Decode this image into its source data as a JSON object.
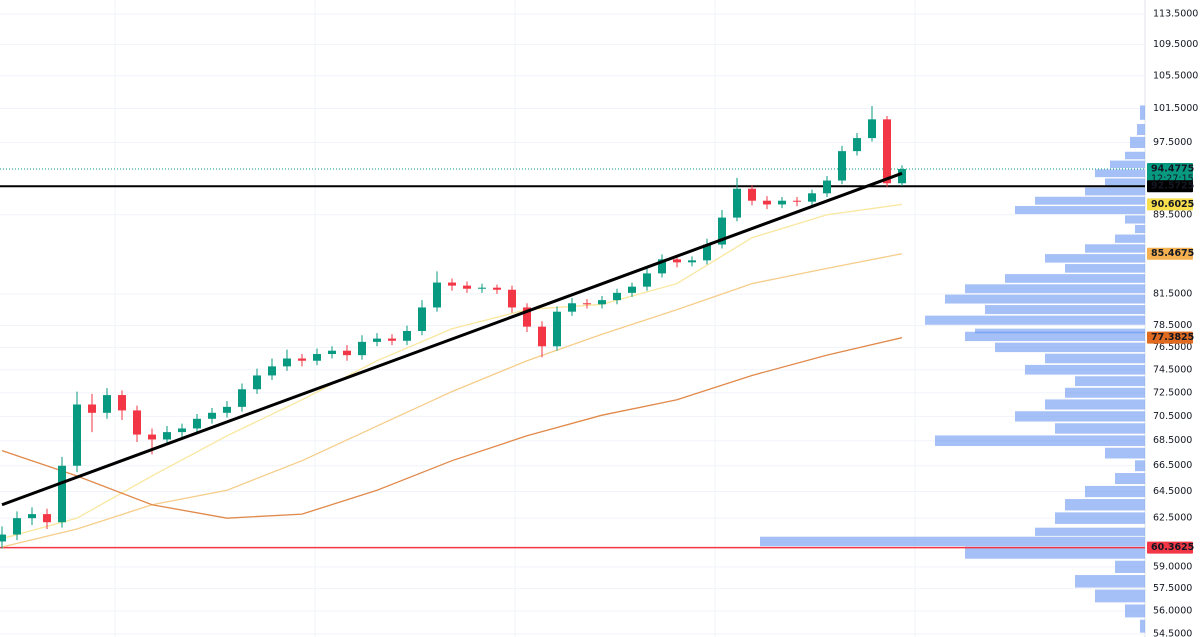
{
  "chart_data": {
    "type": "candlestick",
    "log_scale": true,
    "grid": true,
    "ylim": [
      54.3,
      115.4
    ],
    "yticks": [
      {
        "value": 113.5,
        "label": "113.5000"
      },
      {
        "value": 109.5,
        "label": "109.5000"
      },
      {
        "value": 105.5,
        "label": "105.5000"
      },
      {
        "value": 101.5,
        "label": "101.5000"
      },
      {
        "value": 97.5,
        "label": "97.5000"
      },
      {
        "value": 89.5,
        "label": "89.5000"
      },
      {
        "value": 81.5,
        "label": "81.5000"
      },
      {
        "value": 78.5,
        "label": "78.5000"
      },
      {
        "value": 76.5,
        "label": "76.5000"
      },
      {
        "value": 74.5,
        "label": "74.5000"
      },
      {
        "value": 72.5,
        "label": "72.5000"
      },
      {
        "value": 70.5,
        "label": "70.5000"
      },
      {
        "value": 68.5,
        "label": "68.5000"
      },
      {
        "value": 66.5,
        "label": "66.5000"
      },
      {
        "value": 64.5,
        "label": "64.5000"
      },
      {
        "value": 62.5,
        "label": "62.5000"
      },
      {
        "value": 59,
        "label": "59.0000"
      },
      {
        "value": 57.5,
        "label": "57.5000"
      },
      {
        "value": 56,
        "label": "56.0000"
      },
      {
        "value": 54.5,
        "label": "54.5000"
      }
    ],
    "up_color": "#089981",
    "down_color": "#f23645",
    "open": [
      60.8,
      61.3,
      62.5,
      62.8,
      62.2,
      66.5,
      71.5,
      70.8,
      72.3,
      71.0,
      69.0,
      68.6,
      69.2,
      69.5,
      70.3,
      70.8,
      71.3,
      72.8,
      74.0,
      74.8,
      75.5,
      75.3,
      75.9,
      76.2,
      75.8,
      77.0,
      77.3,
      77.1,
      78.0,
      80.2,
      82.6,
      82.3,
      82.0,
      82.1,
      81.9,
      80.2,
      78.4,
      76.6,
      79.8,
      80.6,
      80.5,
      80.9,
      81.6,
      82.2,
      83.5,
      84.9,
      84.6,
      84.8,
      86.4,
      89.2,
      92.3,
      91.0,
      90.6,
      91.0,
      90.9,
      91.8,
      93.2,
      96.5,
      98.0,
      100.2,
      92.9
    ],
    "high": [
      61.9,
      63.0,
      63.3,
      63.2,
      67.2,
      72.6,
      72.4,
      72.9,
      72.7,
      71.4,
      69.5,
      69.7,
      69.9,
      70.7,
      71.2,
      71.8,
      73.3,
      74.6,
      75.5,
      76.3,
      75.9,
      76.4,
      76.6,
      76.7,
      77.6,
      77.8,
      77.7,
      78.5,
      80.9,
      83.7,
      83.0,
      82.7,
      82.5,
      82.4,
      82.3,
      80.6,
      78.9,
      80.3,
      81.1,
      81.0,
      81.3,
      82.0,
      82.6,
      84.0,
      85.4,
      85.3,
      85.2,
      87.0,
      90.0,
      93.5,
      92.7,
      91.5,
      91.4,
      91.4,
      92.2,
      93.7,
      97.1,
      98.6,
      101.8,
      100.6,
      94.9
    ],
    "low": [
      60.3,
      60.9,
      62.0,
      61.7,
      61.8,
      66.0,
      69.2,
      70.3,
      70.2,
      68.4,
      67.4,
      68.2,
      68.8,
      69.1,
      69.9,
      70.4,
      70.9,
      72.4,
      73.6,
      74.4,
      74.8,
      74.9,
      75.5,
      75.3,
      75.4,
      76.6,
      76.7,
      76.7,
      77.6,
      79.8,
      81.8,
      81.6,
      81.6,
      81.5,
      79.7,
      77.9,
      75.6,
      76.2,
      79.4,
      80.1,
      80.1,
      80.5,
      81.2,
      81.8,
      83.1,
      84.1,
      84.2,
      84.4,
      86.0,
      88.8,
      90.5,
      90.1,
      90.2,
      90.4,
      90.5,
      91.4,
      92.8,
      96.0,
      97.6,
      92.5,
      92.6
    ],
    "close": [
      61.3,
      62.5,
      62.8,
      62.2,
      66.5,
      71.5,
      70.8,
      72.3,
      71.0,
      69.0,
      68.6,
      69.2,
      69.5,
      70.3,
      70.8,
      71.3,
      72.8,
      74.0,
      74.8,
      75.5,
      75.3,
      75.9,
      76.2,
      75.8,
      77.0,
      77.3,
      77.1,
      78.0,
      80.2,
      82.6,
      82.3,
      82.0,
      82.1,
      81.9,
      80.2,
      78.4,
      76.6,
      79.8,
      80.6,
      80.5,
      80.9,
      81.6,
      82.2,
      83.5,
      84.9,
      84.6,
      84.8,
      86.4,
      89.2,
      92.3,
      91.0,
      90.6,
      91.0,
      90.9,
      91.8,
      93.2,
      96.5,
      98.0,
      100.2,
      92.9,
      94.4775
    ],
    "lines": [
      {
        "color": "#f9e79f",
        "x": [
          0,
          5,
          10,
          15,
          20,
          25,
          30,
          35,
          40,
          45,
          50,
          55,
          60
        ],
        "values": [
          61.0,
          62.5,
          65.7,
          68.9,
          71.9,
          75.3,
          78.2,
          80.0,
          80.5,
          82.5,
          87.1,
          89.5,
          90.6025
        ]
      },
      {
        "color": "#f6cd8a",
        "x": [
          0,
          5,
          10,
          15,
          20,
          25,
          30,
          35,
          40,
          45,
          50,
          55,
          60
        ],
        "values": [
          60.4,
          61.7,
          63.5,
          64.6,
          66.9,
          69.7,
          72.6,
          75.3,
          77.7,
          80.0,
          82.5,
          84.0,
          85.4675
        ]
      },
      {
        "color": "#e0894a",
        "x": [
          0,
          5,
          10,
          15,
          20,
          25,
          30,
          35,
          40,
          45,
          50,
          55,
          60
        ],
        "values": [
          67.7,
          65.7,
          63.5,
          62.5,
          62.8,
          64.6,
          66.9,
          68.9,
          70.6,
          71.9,
          74.0,
          75.8,
          77.3825
        ]
      }
    ],
    "trendline": {
      "color": "#000000",
      "x": [
        0,
        60
      ],
      "values": [
        63.5,
        94.0
      ]
    },
    "levels": [
      {
        "value": 94.4775,
        "color": "#089981",
        "style": "dotted"
      },
      {
        "value": 92.5725,
        "color": "#000000",
        "style": "solid"
      },
      {
        "value": 90.6025,
        "color": "#f7e04b",
        "style": "label"
      },
      {
        "value": 85.4675,
        "color": "#f5b050",
        "style": "label"
      },
      {
        "value": 77.3825,
        "color": "#e06a1f",
        "style": "label"
      },
      {
        "value": 60.3625,
        "color": "#f23645",
        "style": "solid"
      }
    ],
    "countdown": "12:27:15",
    "volume_profile": {
      "color": "#5b8def",
      "prices": [
        101,
        99,
        97.5,
        96,
        95,
        94,
        93,
        92,
        91,
        90,
        89,
        88,
        87,
        86,
        85,
        84,
        83,
        82,
        81,
        80,
        79,
        78,
        77.5,
        76.5,
        75.5,
        74.5,
        73.5,
        72.5,
        71.5,
        70.5,
        69.5,
        68.5,
        67.5,
        66.5,
        65.5,
        64.5,
        63.5,
        62.5,
        61.5,
        60.8,
        60,
        59,
        58,
        57,
        56,
        55
      ],
      "volumes": [
        5,
        8,
        15,
        20,
        35,
        50,
        40,
        60,
        110,
        130,
        20,
        10,
        30,
        60,
        100,
        80,
        140,
        180,
        200,
        160,
        220,
        170,
        180,
        150,
        100,
        120,
        70,
        80,
        100,
        130,
        90,
        210,
        40,
        10,
        30,
        60,
        80,
        90,
        110,
        385,
        180,
        30,
        70,
        50,
        20,
        5
      ]
    }
  }
}
